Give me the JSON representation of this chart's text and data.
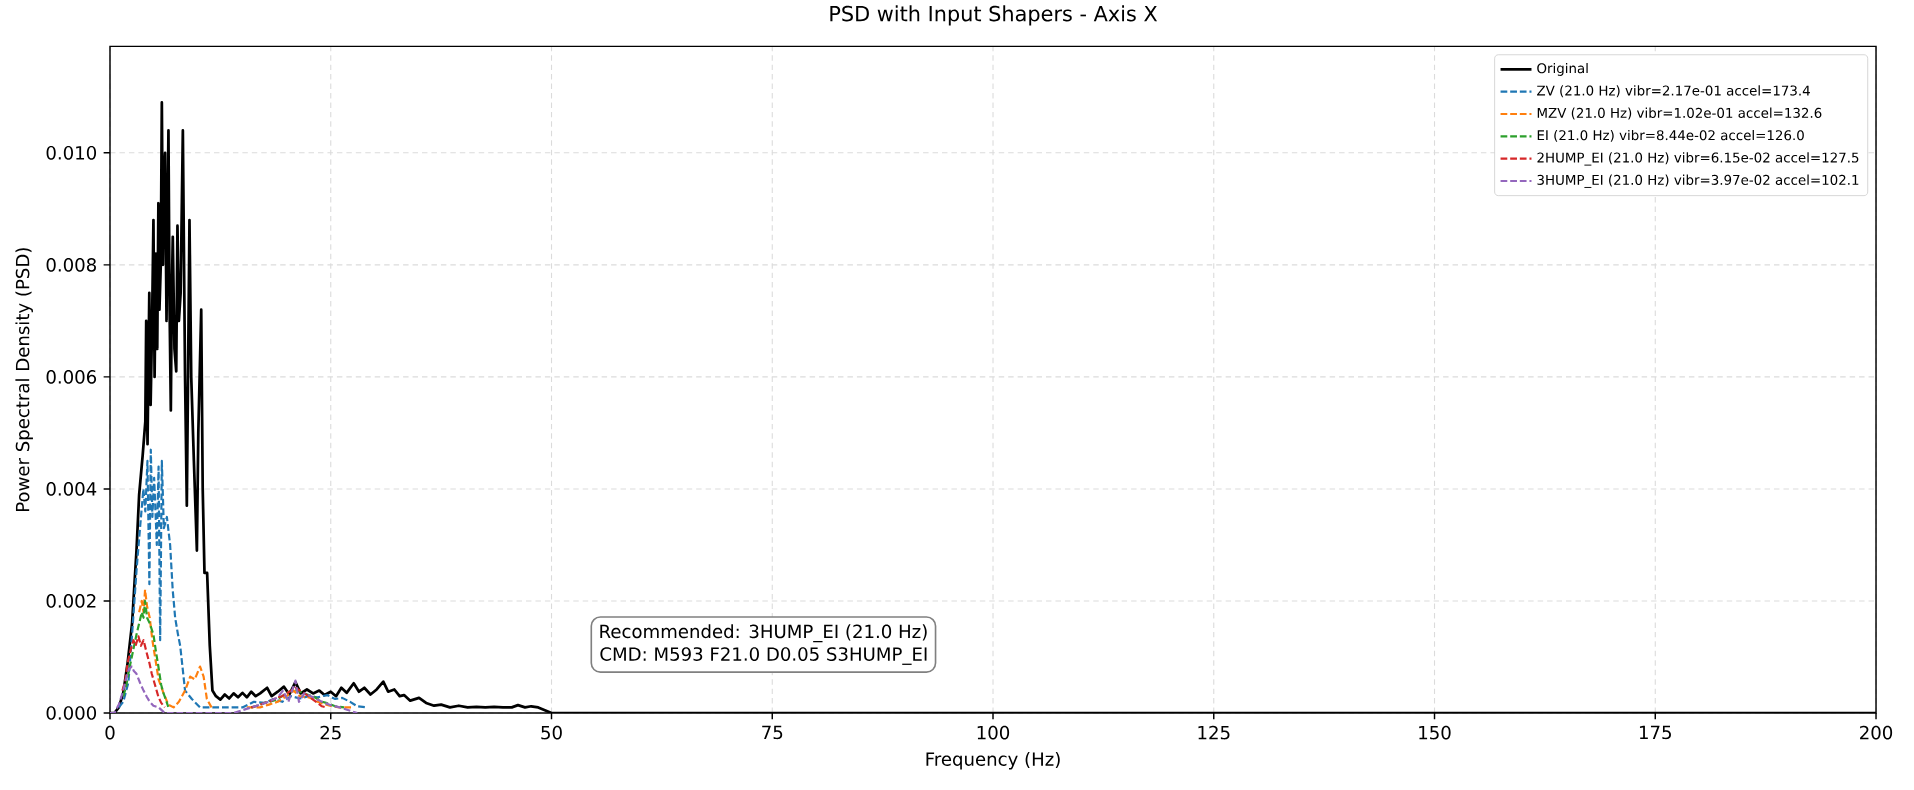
{
  "chart_data": {
    "type": "line",
    "title": "PSD with Input Shapers - Axis X",
    "xlabel": "Frequency (Hz)",
    "ylabel": "Power Spectral Density (PSD)",
    "xlim": [
      0,
      200
    ],
    "ylim": [
      0,
      0.0119
    ],
    "xticks": [
      0,
      25,
      50,
      75,
      100,
      125,
      150,
      175,
      200
    ],
    "yticks": [
      {
        "value": 0,
        "label": "0.000"
      },
      {
        "value": 0.002,
        "label": "0.002"
      },
      {
        "value": 0.004,
        "label": "0.004"
      },
      {
        "value": 0.006,
        "label": "0.006"
      },
      {
        "value": 0.008,
        "label": "0.008"
      },
      {
        "value": 0.01,
        "label": "0.010"
      }
    ],
    "grid": true,
    "legend": "top right",
    "annotations": [
      "Recommended: 3HUMP_EI (21.0 Hz)",
      "CMD: M593 F21.0 D0.05 S3HUMP_EI"
    ],
    "series": [
      {
        "name": "Original",
        "color": "#000000",
        "line_style": "solid",
        "x": [
          0,
          0.5,
          1,
          1.5,
          2,
          2.5,
          3,
          3.3,
          3.7,
          4,
          4.1,
          4.25,
          4.45,
          4.6,
          4.75,
          4.92,
          5.05,
          5.2,
          5.35,
          5.48,
          5.6,
          5.75,
          5.87,
          6,
          6.1,
          6.24,
          6.4,
          6.62,
          6.75,
          6.89,
          7,
          7.11,
          7.3,
          7.5,
          7.64,
          7.8,
          8,
          8.25,
          8.5,
          8.7,
          8.85,
          9,
          9.2,
          9.5,
          9.84,
          10,
          10.33,
          10.5,
          10.7,
          11,
          11.3,
          11.6,
          12,
          12.5,
          13,
          13.5,
          14,
          14.5,
          15,
          15.5,
          16,
          16.5,
          17,
          17.8,
          18.3,
          19,
          19.7,
          20.3,
          21,
          21.6,
          22.3,
          23,
          23.7,
          24.3,
          25,
          25.6,
          26.2,
          26.8,
          27.6,
          28.2,
          28.8,
          29.5,
          30.2,
          30.95,
          31.5,
          32.2,
          32.8,
          33.3,
          34,
          35,
          35.8,
          36.7,
          37.5,
          38.5,
          39.5,
          40.5,
          41.5,
          42.5,
          43.5,
          44.5,
          45.5,
          46.2,
          47,
          47.7,
          48.5,
          50,
          55,
          60,
          70,
          80,
          100,
          125,
          150,
          175,
          200
        ],
        "values": [
          0,
          0,
          0.0001,
          0.00036,
          0.0009,
          0.0016,
          0.0029,
          0.0039,
          0.0046,
          0.0052,
          0.007,
          0.0048,
          0.0075,
          0.0055,
          0.0068,
          0.0088,
          0.006,
          0.0082,
          0.0065,
          0.0091,
          0.0072,
          0.008,
          0.0109,
          0.008,
          0.0095,
          0.01,
          0.007,
          0.0104,
          0.0072,
          0.0054,
          0.0075,
          0.0085,
          0.0065,
          0.0061,
          0.0087,
          0.007,
          0.0075,
          0.0104,
          0.006,
          0.0037,
          0.0062,
          0.0088,
          0.006,
          0.0045,
          0.0029,
          0.005,
          0.0072,
          0.004,
          0.0025,
          0.0025,
          0.0012,
          0.0004,
          0.0003,
          0.00024,
          0.00033,
          0.00026,
          0.00035,
          0.00028,
          0.00036,
          0.00028,
          0.00038,
          0.0003,
          0.00035,
          0.00045,
          0.0003,
          0.00038,
          0.00047,
          0.00033,
          0.00055,
          0.00035,
          0.00042,
          0.00035,
          0.0004,
          0.00032,
          0.00038,
          0.0003,
          0.00045,
          0.00036,
          0.00053,
          0.00038,
          0.00045,
          0.00033,
          0.00042,
          0.00056,
          0.00038,
          0.00042,
          0.0003,
          0.00032,
          0.00022,
          0.00027,
          0.00018,
          0.00013,
          0.00015,
          0.0001,
          0.00013,
          0.0001,
          0.00011,
          0.0001,
          0.00011,
          0.0001,
          0.0001,
          0.00014,
          0.0001,
          0.00012,
          0.0001,
          0,
          0,
          0,
          0,
          0,
          0,
          0,
          0,
          0,
          0
        ]
      },
      {
        "name": "ZV (21.0 Hz)  vibr=2.17e-01  accel=173.4",
        "color": "#1f77b4",
        "line_style": "dashed",
        "x": [
          1,
          1.5,
          2.08,
          2.5,
          3.03,
          3.4,
          3.78,
          4,
          4.24,
          4.46,
          4.62,
          4.8,
          5,
          5.3,
          5.5,
          5.68,
          5.87,
          6.1,
          6.44,
          6.81,
          7.1,
          7.38,
          7.7,
          7.95,
          8.5,
          9.27,
          10.2,
          11,
          12,
          13,
          14,
          15,
          16.3,
          17.5,
          18.5,
          19.5,
          20.5,
          21.5,
          22.5,
          23.5,
          24.6,
          25.5,
          26.3,
          27.2,
          28,
          29.1
        ],
        "values": [
          0.0001,
          0.0002,
          0.00054,
          0.0014,
          0.0026,
          0.0033,
          0.004,
          0.0036,
          0.0045,
          0.0023,
          0.0047,
          0.0035,
          0.0042,
          0.003,
          0.0044,
          0.0013,
          0.0045,
          0.0033,
          0.0035,
          0.003,
          0.0022,
          0.0017,
          0.0014,
          0.0012,
          0.0004,
          0.00025,
          0.0001,
          0.0001,
          0.0001,
          0.0001,
          0.0001,
          0.0001,
          0.0002,
          0.00018,
          0.00025,
          0.0002,
          0.0003,
          0.00026,
          0.0003,
          0.00028,
          0.00032,
          0.00025,
          0.00027,
          0.0002,
          0.00012,
          0.0001
        ]
      },
      {
        "name": "MZV (21.0 Hz)  vibr=1.02e-01  accel=132.6",
        "color": "#ff7f0e",
        "line_style": "dashed",
        "x": [
          3.3,
          3.6,
          3.8,
          3.97,
          4.2,
          4.5,
          4.8,
          5.1,
          5.5,
          6.05,
          6.6,
          7.2,
          7.8,
          8.5,
          9.08,
          9.6,
          10.2,
          10.6,
          10.97,
          11.5,
          12.5,
          14,
          15.5,
          17,
          18,
          19,
          19.5,
          20,
          20.8,
          21.1,
          21.5,
          22.5,
          23,
          23.5,
          24.5,
          25.2,
          26,
          27.5
        ],
        "values": [
          0.0018,
          0.002,
          0.0018,
          0.0022,
          0.0019,
          0.0017,
          0.0013,
          0.001,
          0.0006,
          0.00036,
          0.00015,
          0.0001,
          0.0002,
          0.0004,
          0.00065,
          0.0006,
          0.00083,
          0.00065,
          0.00025,
          0.0001,
          null,
          null,
          0.0001,
          0.0001,
          0.00015,
          0.0002,
          0.00025,
          0.0003,
          0.0004,
          0.00035,
          0.0003,
          0.00028,
          0.00025,
          0.0002,
          0.00015,
          0.00012,
          0.0001,
          0.0001
        ]
      },
      {
        "name": "EI (21.0 Hz)  vibr=8.44e-02  accel=126.0",
        "color": "#2ca02c",
        "line_style": "dashed",
        "x": [
          1.5,
          1.8,
          2.2,
          2.6,
          3,
          3.3,
          3.6,
          3.8,
          3.97,
          4.2,
          4.5,
          4.92,
          5.2,
          5.48,
          5.8,
          6.05,
          6.6,
          10,
          16,
          16.5,
          17,
          17.5,
          18,
          18.5,
          19,
          19.5,
          20,
          20.5,
          21,
          21.5,
          22,
          22.5,
          23,
          23.5,
          24,
          24.5,
          25,
          25.5,
          26.5
        ],
        "values": [
          0.0003,
          0.00045,
          0.0008,
          0.0011,
          0.0014,
          0.0016,
          0.0018,
          0.0017,
          0.002,
          0.0017,
          0.0016,
          0.0014,
          0.0011,
          0.00083,
          0.0005,
          0.00036,
          0.00011,
          null,
          0.0001,
          0.00012,
          0.00015,
          0.00018,
          0.0002,
          0.00022,
          0.00025,
          0.0003,
          0.00035,
          0.0004,
          0.00042,
          0.00038,
          0.00035,
          0.00032,
          0.0003,
          0.00025,
          0.0002,
          0.00018,
          0.00015,
          0.00012,
          0.0001
        ]
      },
      {
        "name": "2HUMP_EI (21.0 Hz)  vibr=6.15e-02  accel=127.5",
        "color": "#d62728",
        "line_style": "dashed",
        "x": [
          1.4,
          1.7,
          2,
          2.3,
          2.65,
          2.9,
          3.22,
          3.5,
          3.8,
          4.16,
          4.45,
          4.73,
          5.1,
          5.48,
          5.8,
          6.2,
          10,
          16,
          16.5,
          17,
          17.5,
          18,
          18.5,
          19,
          19.5,
          20,
          20.5,
          21,
          21.5,
          22,
          22.5,
          23,
          23.5,
          24,
          24.5
        ],
        "values": [
          0.0004,
          0.00055,
          0.0009,
          0.0011,
          0.0013,
          0.0012,
          0.00137,
          0.0012,
          0.0013,
          0.00107,
          0.0009,
          0.0007,
          0.0005,
          0.00029,
          0.00018,
          0.0001,
          null,
          0.0001,
          0.00012,
          0.00015,
          0.00018,
          0.0002,
          0.00024,
          0.00028,
          0.0003,
          0.00035,
          0.0004,
          0.00045,
          0.0004,
          0.00035,
          0.0003,
          0.00024,
          0.00018,
          0.00012,
          0.0001
        ]
      },
      {
        "name": "3HUMP_EI (21.0 Hz)  vibr=3.97e-02  accel=102.1",
        "color": "#9467bd",
        "line_style": "dashed",
        "x": [
          0,
          0.5,
          1,
          1.5,
          1.8,
          2.1,
          2.46,
          2.7,
          3,
          3.4,
          3.8,
          4.16,
          4.5,
          4.92,
          5.5,
          6.2,
          7,
          8,
          10,
          12,
          14,
          16,
          17,
          18,
          19,
          19.6,
          20.2,
          21,
          21.4,
          22,
          23,
          24,
          25,
          26,
          28
        ],
        "values": [
          0,
          0,
          0.00015,
          0.0004,
          0.0006,
          0.00077,
          0.00083,
          0.00075,
          0.0007,
          0.00054,
          0.0004,
          0.00029,
          0.0002,
          0.00013,
          0.0001,
          0,
          0,
          0,
          0,
          0,
          0,
          0.0001,
          0.00015,
          0.0002,
          0.00028,
          0.0004,
          0.0002,
          0.00058,
          0.0002,
          0.00035,
          0.00028,
          0.0002,
          0.00014,
          0.0001,
          0
        ]
      }
    ]
  }
}
